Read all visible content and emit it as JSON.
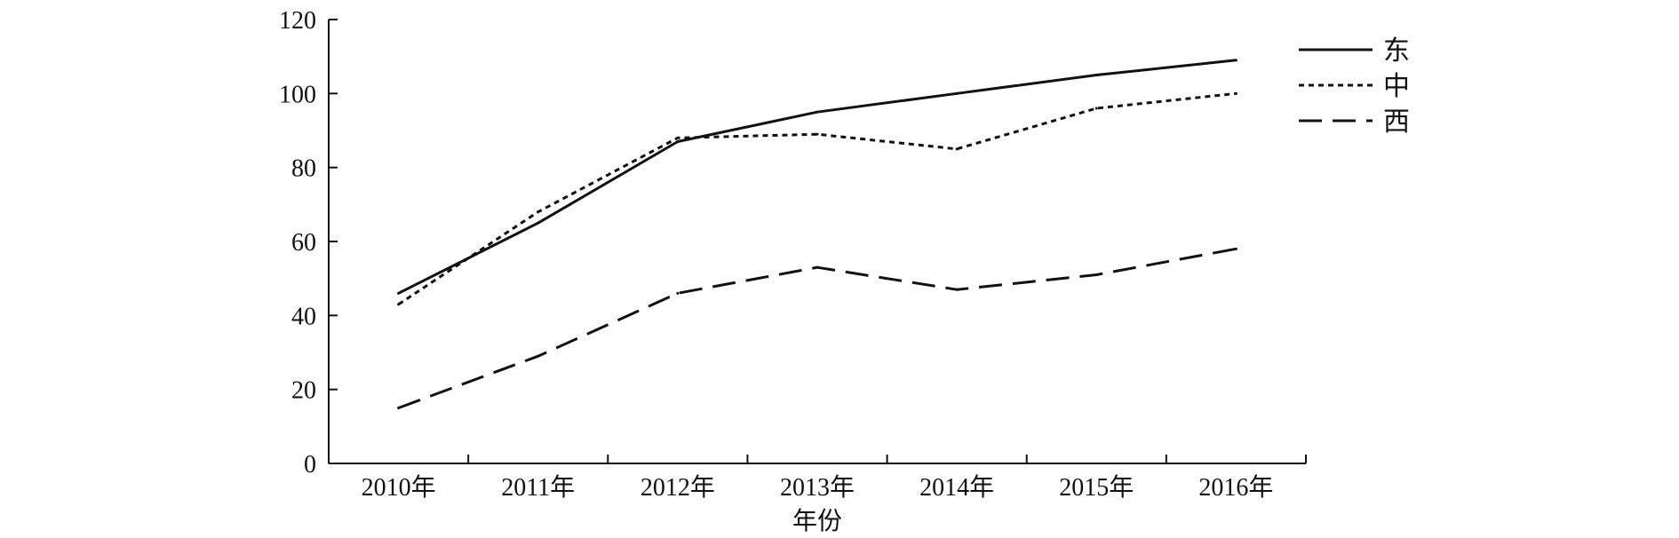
{
  "chart_data": {
    "type": "line",
    "categories": [
      "2010年",
      "2011年",
      "2012年",
      "2013年",
      "2014年",
      "2015年",
      "2016年"
    ],
    "series": [
      {
        "name": "东",
        "values": [
          46,
          65,
          87,
          95,
          100,
          105,
          109
        ],
        "style": "solid"
      },
      {
        "name": "中",
        "values": [
          43,
          68,
          88,
          89,
          85,
          96,
          100
        ],
        "style": "dotted"
      },
      {
        "name": "西",
        "values": [
          15,
          29,
          46,
          53,
          47,
          51,
          58
        ],
        "style": "dashed"
      }
    ],
    "xlabel": "年份",
    "ylabel": "",
    "ylim": [
      0,
      120
    ],
    "yticks": [
      "0",
      "20",
      "40",
      "60",
      "80",
      "100",
      "120"
    ],
    "grid": false,
    "legend": "top-right",
    "colors": {
      "line": "#111111",
      "background": "#ffffff"
    }
  }
}
